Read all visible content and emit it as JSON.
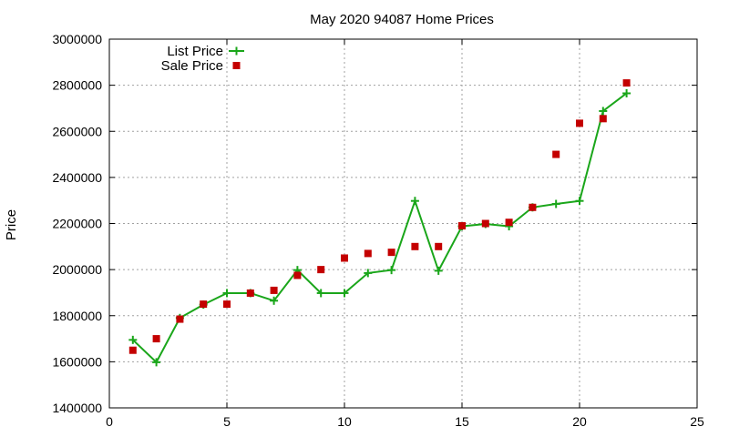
{
  "chart_data": {
    "type": "line",
    "title": "May 2020 94087 Home Prices",
    "xlabel": "",
    "ylabel": "Price",
    "xlim": [
      0,
      25
    ],
    "ylim": [
      1400000,
      3000000
    ],
    "x_ticks": [
      0,
      5,
      10,
      15,
      20,
      25
    ],
    "y_ticks": [
      1400000,
      1600000,
      1800000,
      2000000,
      2200000,
      2400000,
      2600000,
      2800000,
      3000000
    ],
    "grid": true,
    "legend_position": "top-left",
    "series": [
      {
        "name": "List Price",
        "style": "line-plus",
        "color": "#1aa61a",
        "x": [
          1,
          2,
          3,
          4,
          5,
          6,
          7,
          8,
          9,
          10,
          11,
          12,
          13,
          14,
          15,
          16,
          17,
          18,
          19,
          20,
          21,
          22
        ],
        "y": [
          1695000,
          1598000,
          1790000,
          1848000,
          1898000,
          1898000,
          1865000,
          1998000,
          1898000,
          1898000,
          1985000,
          1998000,
          2298000,
          1995000,
          2188000,
          2198000,
          2188000,
          2270000,
          2285000,
          2298000,
          2688000,
          2765000
        ]
      },
      {
        "name": "Sale Price",
        "style": "square",
        "color": "#c40000",
        "x": [
          1,
          2,
          3,
          4,
          5,
          6,
          7,
          8,
          9,
          10,
          11,
          12,
          13,
          14,
          15,
          16,
          17,
          18,
          19,
          20,
          21,
          22
        ],
        "y": [
          1650000,
          1700000,
          1785000,
          1850000,
          1850000,
          1898000,
          1910000,
          1975000,
          2000000,
          2050000,
          2070000,
          2075000,
          2100000,
          2100000,
          2190000,
          2200000,
          2205000,
          2270000,
          2500000,
          2635000,
          2655000,
          2810000
        ]
      }
    ]
  }
}
